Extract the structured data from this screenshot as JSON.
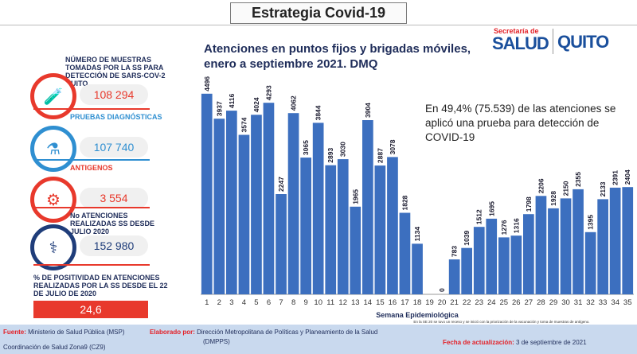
{
  "header": {
    "title": "Estrategia Covid-19"
  },
  "logo": {
    "secretaria": "Secretaría de",
    "salud": "SALUD",
    "quito": "QUITO"
  },
  "chart_title": "Atenciones en puntos fijos y brigadas móviles, enero a septiembre 2021. DMQ",
  "note": "En 49,4% (75.539) de las atenciones se aplicó una prueba para detección de COVID-19",
  "kpis": [
    {
      "label": "NÚMERO DE MUESTRAS TOMADAS POR LA SS PARA DETECCIÓN DE SARS-COV-2 QUITO",
      "value": "108 294",
      "color": "#e8392c",
      "label_color": "#1f2d5a",
      "icon": "test-tubes-icon",
      "glyph": "🧪"
    },
    {
      "label": "PRUEBAS DIAGNÓSTICAS",
      "value": "107 740",
      "color": "#2f8fd1",
      "label_color": "#2f8fd1",
      "icon": "diagnostic-tubes-icon",
      "glyph": "⚗"
    },
    {
      "label": "ANTIGENOS",
      "value": "3 554",
      "color": "#e8392c",
      "label_color": "#e8392c",
      "icon": "antigen-icon",
      "glyph": "⚙"
    },
    {
      "label": "No ATENCIONES REALIZADAS SS DESDE JULIO 2020",
      "value": "152 980",
      "color": "#1f3d7a",
      "label_color": "#1f2d5a",
      "icon": "doctor-patient-icon",
      "glyph": "⚕"
    }
  ],
  "positividad": {
    "label": "% DE POSITIVIDAD EN ATENCIONES REALIZADAS POR LA SS DESDE EL 22 DE JULIO DE 2020",
    "value": "24,6"
  },
  "footer": {
    "fuente_key": "Fuente:",
    "fuente": "Ministerio de Salud Pública (MSP)",
    "coordinacion": "Coordinación de Salud Zona9 (CZ9)",
    "elaborado_key": "Elaborado por:",
    "elaborado": "Dirección Metropolitana de Políticas y Planeamiento de la Salud",
    "elaborado2": "(DMPPS)",
    "fecha_key": "Fecha de actualización:",
    "fecha": "3 de septiembre de 2021"
  },
  "chart_data": {
    "type": "bar",
    "title": "Atenciones en puntos fijos y brigadas móviles, enero a septiembre 2021. DMQ",
    "xlabel": "Semana Epidemiológica",
    "x_note": "En la SE 20 se tuvo un receso y se inició con la priorización de la vacunación y toma de muestras de antígeno.",
    "ylabel": "",
    "ylim": [
      0,
      4600
    ],
    "bar_color": "#3c6fbf",
    "categories": [
      "1",
      "2",
      "3",
      "4",
      "5",
      "6",
      "7",
      "8",
      "9",
      "10",
      "11",
      "12",
      "13",
      "14",
      "15",
      "16",
      "17",
      "18",
      "19",
      "20",
      "21",
      "22",
      "23",
      "24",
      "25",
      "26",
      "27",
      "28",
      "29",
      "30",
      "31",
      "32",
      "33",
      "34",
      "35"
    ],
    "values": [
      4496,
      3937,
      4116,
      3574,
      4024,
      4293,
      2247,
      4062,
      3065,
      3844,
      2893,
      3030,
      1965,
      3904,
      2887,
      3078,
      1828,
      1134,
      null,
      0,
      783,
      1039,
      1512,
      1695,
      1276,
      1316,
      1798,
      2206,
      1928,
      2150,
      2355,
      1395,
      2133,
      2391,
      2404
    ],
    "labels": [
      "4496",
      "3937",
      "4116",
      "3574",
      "4024",
      "4293",
      "2247",
      "4062",
      "3065",
      "3844",
      "2893",
      "3030",
      "1965",
      "3904",
      "2887",
      "3078",
      "1828",
      "1134",
      "",
      "0",
      "783",
      "1039",
      "1512",
      "1695",
      "1276",
      "1316",
      "1798",
      "2206",
      "1928",
      "2150",
      "2355",
      "1395",
      "2133",
      "2391",
      "2404"
    ],
    "grid": false,
    "legend": "none"
  }
}
